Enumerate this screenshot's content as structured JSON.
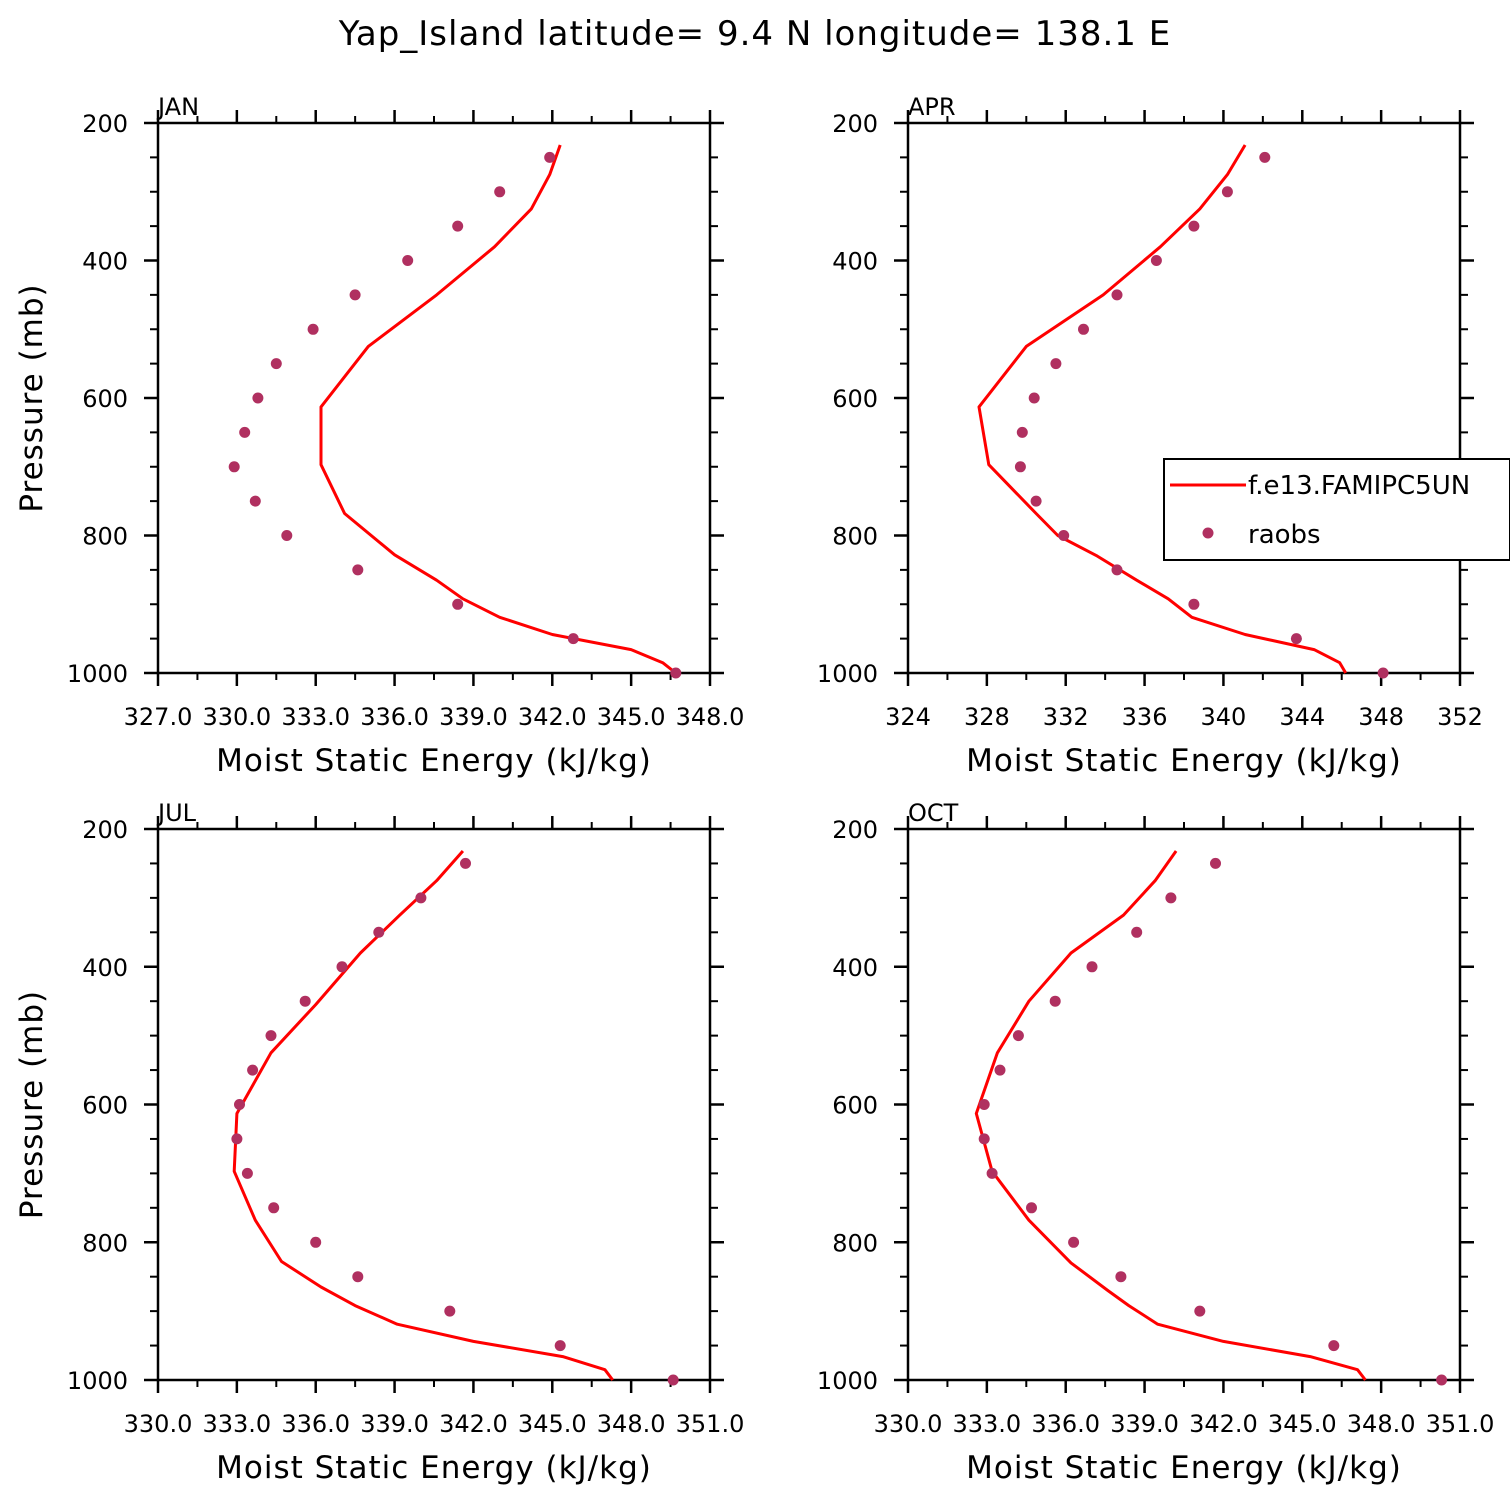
{
  "figure": {
    "title": "Yap_Island  latitude= 9.4 N longitude= 138.1 E"
  },
  "colors": {
    "model_line": "#ff0000",
    "obs_marker": "#b03060",
    "axis": "#000000"
  },
  "legend": {
    "model_label": "f.e13.FAMIPC5UN",
    "obs_label": "raobs"
  },
  "chart_data": [
    {
      "type": "line",
      "panel": "JAN",
      "xlabel": "Moist Static Energy (kJ/kg)",
      "ylabel": "Pressure (mb)",
      "xlim": [
        327.0,
        348.0
      ],
      "ylim": [
        1000,
        200
      ],
      "x_ticks": [
        "327.0",
        "330.0",
        "333.0",
        "336.0",
        "339.0",
        "342.0",
        "345.0",
        "348.0"
      ],
      "y_ticks": [
        "200",
        "400",
        "600",
        "800",
        "1000"
      ],
      "series": [
        {
          "name": "f.e13.FAMIPC5UN",
          "points": [
            [
              346.7,
              1000
            ],
            [
              346.2,
              985
            ],
            [
              345.0,
              966
            ],
            [
              342.0,
              944
            ],
            [
              340.0,
              919
            ],
            [
              338.6,
              892
            ],
            [
              337.6,
              865
            ],
            [
              336.0,
              828
            ],
            [
              334.1,
              768
            ],
            [
              333.2,
              697
            ],
            [
              333.2,
              613
            ],
            [
              335.0,
              525
            ],
            [
              337.6,
              450
            ],
            [
              339.8,
              380
            ],
            [
              341.2,
              325
            ],
            [
              341.9,
              275
            ],
            [
              342.3,
              232
            ]
          ]
        },
        {
          "name": "raobs",
          "points": [
            [
              346.7,
              1000
            ],
            [
              342.8,
              950
            ],
            [
              338.4,
              900
            ],
            [
              334.6,
              850
            ],
            [
              331.9,
              800
            ],
            [
              330.7,
              750
            ],
            [
              329.9,
              700
            ],
            [
              330.3,
              650
            ],
            [
              330.8,
              600
            ],
            [
              331.5,
              550
            ],
            [
              332.9,
              500
            ],
            [
              334.5,
              450
            ],
            [
              336.5,
              400
            ],
            [
              338.4,
              350
            ],
            [
              340.0,
              300
            ],
            [
              341.9,
              250
            ]
          ]
        }
      ],
      "legend": "none"
    },
    {
      "type": "line",
      "panel": "APR",
      "xlabel": "Moist Static Energy (kJ/kg)",
      "ylabel": "Pressure (mb)",
      "xlim": [
        324,
        352
      ],
      "ylim": [
        1000,
        200
      ],
      "x_ticks": [
        "324",
        "328",
        "332",
        "336",
        "340",
        "344",
        "348",
        "352"
      ],
      "y_ticks": [
        "200",
        "400",
        "600",
        "800",
        "1000"
      ],
      "series": [
        {
          "name": "f.e13.FAMIPC5UN",
          "points": [
            [
              346.2,
              1000
            ],
            [
              345.9,
              985
            ],
            [
              344.6,
              966
            ],
            [
              341.1,
              944
            ],
            [
              338.4,
              919
            ],
            [
              337.2,
              892
            ],
            [
              335.6,
              865
            ],
            [
              333.6,
              830
            ],
            [
              331.6,
              800
            ],
            [
              330.5,
              768
            ],
            [
              328.1,
              697
            ],
            [
              327.6,
              613
            ],
            [
              330.0,
              525
            ],
            [
              333.9,
              450
            ],
            [
              336.8,
              380
            ],
            [
              338.8,
              325
            ],
            [
              340.2,
              275
            ],
            [
              341.1,
              232
            ]
          ]
        },
        {
          "name": "raobs",
          "points": [
            [
              348.1,
              1000
            ],
            [
              343.7,
              950
            ],
            [
              338.5,
              900
            ],
            [
              334.6,
              850
            ],
            [
              331.9,
              800
            ],
            [
              330.5,
              750
            ],
            [
              329.7,
              700
            ],
            [
              329.8,
              650
            ],
            [
              330.4,
              600
            ],
            [
              331.5,
              550
            ],
            [
              332.9,
              500
            ],
            [
              334.6,
              450
            ],
            [
              336.6,
              400
            ],
            [
              338.5,
              350
            ],
            [
              340.2,
              300
            ],
            [
              342.1,
              250
            ]
          ]
        }
      ],
      "legend": "right"
    },
    {
      "type": "line",
      "panel": "JUL",
      "xlabel": "Moist Static Energy (kJ/kg)",
      "ylabel": "Pressure (mb)",
      "xlim": [
        330.0,
        351.0
      ],
      "ylim": [
        1000,
        200
      ],
      "x_ticks": [
        "330.0",
        "333.0",
        "336.0",
        "339.0",
        "342.0",
        "345.0",
        "348.0",
        "351.0"
      ],
      "y_ticks": [
        "200",
        "400",
        "600",
        "800",
        "1000"
      ],
      "series": [
        {
          "name": "f.e13.FAMIPC5UN",
          "points": [
            [
              347.3,
              1000
            ],
            [
              347.0,
              985
            ],
            [
              345.4,
              966
            ],
            [
              342.0,
              944
            ],
            [
              339.1,
              919
            ],
            [
              337.5,
              892
            ],
            [
              336.2,
              865
            ],
            [
              334.7,
              828
            ],
            [
              333.7,
              768
            ],
            [
              332.9,
              697
            ],
            [
              333.0,
              613
            ],
            [
              334.3,
              525
            ],
            [
              336.0,
              455
            ],
            [
              337.7,
              380
            ],
            [
              339.2,
              325
            ],
            [
              340.6,
              275
            ],
            [
              341.6,
              232
            ]
          ]
        },
        {
          "name": "raobs",
          "points": [
            [
              349.6,
              1000
            ],
            [
              345.3,
              950
            ],
            [
              341.1,
              900
            ],
            [
              337.6,
              850
            ],
            [
              336.0,
              800
            ],
            [
              334.4,
              750
            ],
            [
              333.4,
              700
            ],
            [
              333.0,
              650
            ],
            [
              333.1,
              600
            ],
            [
              333.6,
              550
            ],
            [
              334.3,
              500
            ],
            [
              335.6,
              450
            ],
            [
              337.0,
              400
            ],
            [
              338.4,
              350
            ],
            [
              340.0,
              300
            ],
            [
              341.7,
              250
            ]
          ]
        }
      ],
      "legend": "none"
    },
    {
      "type": "line",
      "panel": "OCT",
      "xlabel": "Moist Static Energy (kJ/kg)",
      "ylabel": "Pressure (mb)",
      "xlim": [
        330.0,
        351.0
      ],
      "ylim": [
        1000,
        200
      ],
      "x_ticks": [
        "330.0",
        "333.0",
        "336.0",
        "339.0",
        "342.0",
        "345.0",
        "348.0",
        "351.0"
      ],
      "y_ticks": [
        "200",
        "400",
        "600",
        "800",
        "1000"
      ],
      "series": [
        {
          "name": "f.e13.FAMIPC5UN",
          "points": [
            [
              347.4,
              1000
            ],
            [
              347.1,
              985
            ],
            [
              345.3,
              966
            ],
            [
              342.0,
              944
            ],
            [
              339.5,
              919
            ],
            [
              338.4,
              892
            ],
            [
              337.6,
              870
            ],
            [
              336.2,
              830
            ],
            [
              334.6,
              768
            ],
            [
              333.2,
              697
            ],
            [
              332.6,
              613
            ],
            [
              333.4,
              525
            ],
            [
              334.6,
              450
            ],
            [
              336.2,
              380
            ],
            [
              338.2,
              325
            ],
            [
              339.4,
              275
            ],
            [
              340.2,
              232
            ]
          ]
        },
        {
          "name": "raobs",
          "points": [
            [
              350.3,
              1000
            ],
            [
              346.2,
              950
            ],
            [
              341.1,
              900
            ],
            [
              338.1,
              850
            ],
            [
              336.3,
              800
            ],
            [
              334.7,
              750
            ],
            [
              333.2,
              700
            ],
            [
              332.9,
              650
            ],
            [
              332.9,
              600
            ],
            [
              333.5,
              550
            ],
            [
              334.2,
              500
            ],
            [
              335.6,
              450
            ],
            [
              337.0,
              400
            ],
            [
              338.7,
              350
            ],
            [
              340.0,
              300
            ],
            [
              341.7,
              250
            ]
          ]
        }
      ],
      "legend": "none"
    }
  ]
}
